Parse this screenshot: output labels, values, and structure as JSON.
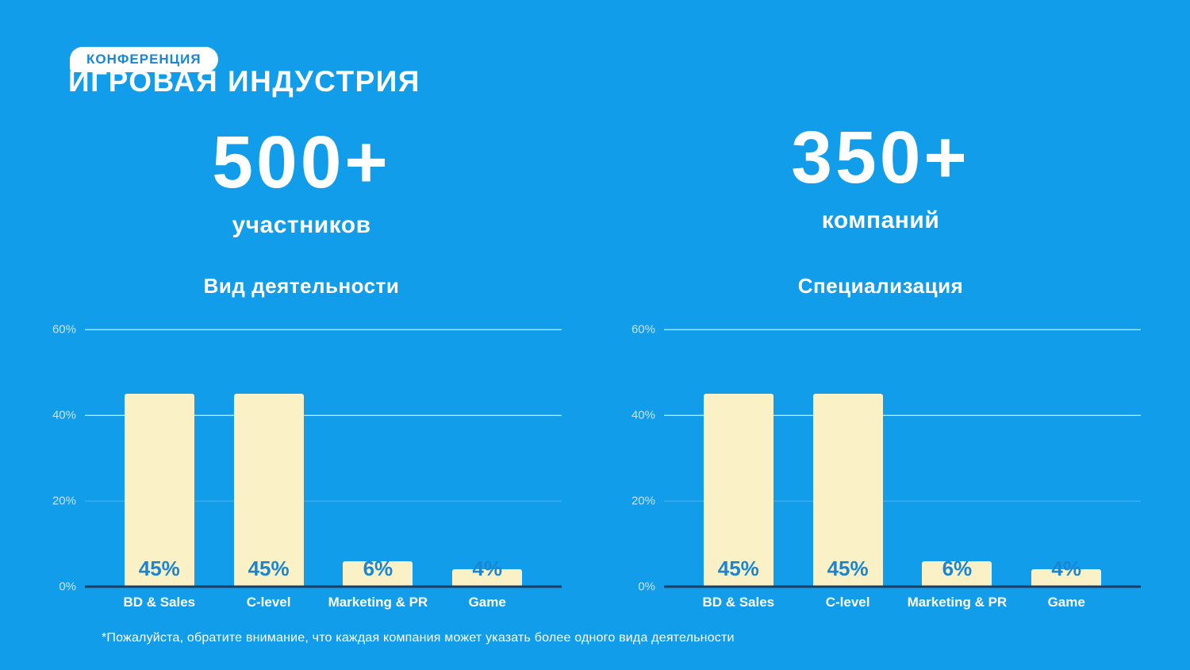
{
  "header": {
    "badge": "КОНФЕРЕНЦИЯ",
    "title": "ИГРОВАЯ ИНДУСТРИЯ"
  },
  "stats": [
    {
      "value": "500+",
      "label": "участников"
    },
    {
      "value": "350+",
      "label": "компаний"
    }
  ],
  "footnote": "*Пожалуйста, обратите внимание, что каждая компания может указать более одного вида деятельности",
  "colors": {
    "background": "#129DEA",
    "bar": "#FBF1C7",
    "value_label": "#1886D4",
    "baseline": "#1E3E5F",
    "gridline_major": "#FFFFFF",
    "gridline_minor": "rgba(165,185,200,0.6)",
    "tick_label": "#C8E4F6",
    "badge_bg": "#FFFFFF",
    "badge_text": "#1787D6",
    "text": "#FFFFFF"
  },
  "chart_data": [
    {
      "type": "bar",
      "title": "Вид деятельности",
      "categories": [
        "BD & Sales",
        "C-level",
        "Marketing & PR",
        "Game"
      ],
      "values": [
        45,
        45,
        6,
        4
      ],
      "unit": "%",
      "xlabel": "",
      "ylabel": "",
      "ylim": [
        0,
        60
      ],
      "grid": true,
      "legend": false,
      "value_labels_position": "inside-bottom",
      "yticks": [
        {
          "value": 0,
          "label": "0%",
          "style": "baseline"
        },
        {
          "value": 20,
          "label": "20%",
          "style": "minor"
        },
        {
          "value": 40,
          "label": "40%",
          "style": "major"
        },
        {
          "value": 60,
          "label": "60%",
          "style": "major"
        }
      ]
    },
    {
      "type": "bar",
      "title": "Специализация",
      "categories": [
        "BD & Sales",
        "C-level",
        "Marketing & PR",
        "Game"
      ],
      "values": [
        45,
        45,
        6,
        4
      ],
      "unit": "%",
      "xlabel": "",
      "ylabel": "",
      "ylim": [
        0,
        60
      ],
      "grid": true,
      "legend": false,
      "value_labels_position": "inside-bottom",
      "yticks": [
        {
          "value": 0,
          "label": "0%",
          "style": "baseline"
        },
        {
          "value": 20,
          "label": "20%",
          "style": "minor"
        },
        {
          "value": 40,
          "label": "40%",
          "style": "major"
        },
        {
          "value": 60,
          "label": "60%",
          "style": "major"
        }
      ]
    }
  ]
}
